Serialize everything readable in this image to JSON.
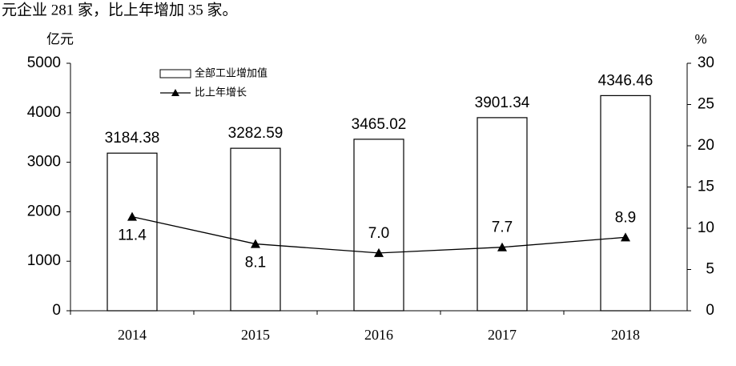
{
  "intro_text": "元企业 281 家，比上年增加 35 家。",
  "chart_data": {
    "type": "bar-line",
    "y_label": "亿元",
    "y2_label": "%",
    "categories": [
      "2014",
      "2015",
      "2016",
      "2017",
      "2018"
    ],
    "series": [
      {
        "name": "全部工业增加值",
        "type": "bar",
        "color": "#ffffff",
        "values": [
          3184.38,
          3282.59,
          3465.02,
          3901.34,
          4346.46
        ]
      },
      {
        "name": "比上年增长",
        "type": "line",
        "axis": "y2",
        "color": "#000000",
        "values": [
          11.4,
          8.1,
          7.0,
          7.7,
          8.9
        ],
        "value_labels": [
          "11.4",
          "8.1",
          "7.0",
          "7.7",
          "8.9"
        ]
      }
    ],
    "ylim": [
      0,
      5000
    ],
    "yticks": [
      0,
      1000,
      2000,
      3000,
      4000,
      5000
    ],
    "y2lim": [
      0,
      30
    ],
    "y2ticks": [
      0,
      5,
      10,
      15,
      20,
      25,
      30
    ],
    "grid": false,
    "legend": "top-left"
  }
}
